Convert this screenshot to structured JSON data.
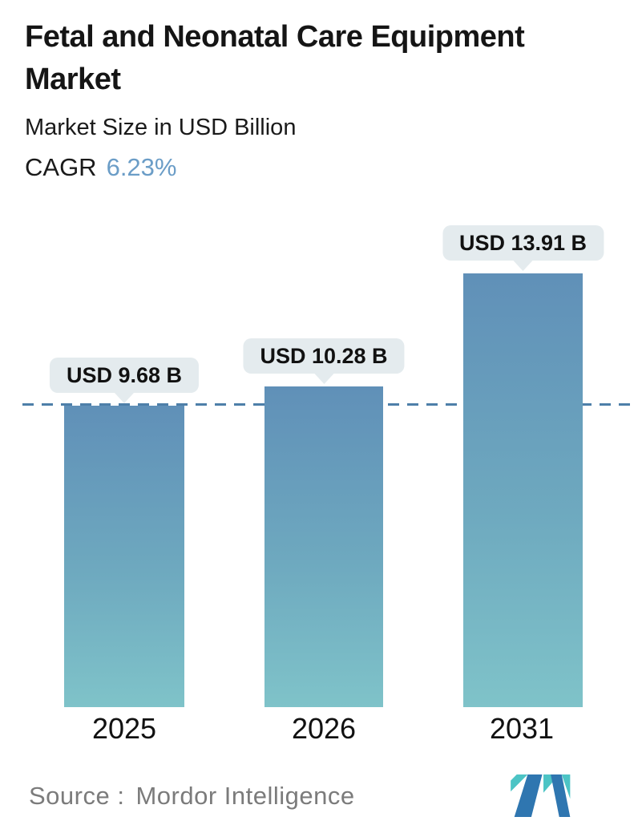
{
  "header": {
    "title": "Fetal and Neonatal Care Equipment Market",
    "subtitle": "Market Size in USD Billion",
    "cagr_label": "CAGR",
    "cagr_value": "6.23%"
  },
  "chart_data": {
    "type": "bar",
    "title": "Fetal and Neonatal Care Equipment Market",
    "subtitle": "Market Size in USD Billion",
    "cagr_pct": 6.23,
    "categories": [
      "2025",
      "2026",
      "2031"
    ],
    "values": [
      9.68,
      10.28,
      13.91
    ],
    "value_labels": [
      "USD 9.68 B",
      "USD 10.28 B",
      "USD 13.91 B"
    ],
    "xlabel": "",
    "ylabel": "Market Size in USD Billion",
    "ylim": [
      0,
      15
    ],
    "grid": false,
    "legend": false,
    "reference_line": {
      "value": 9.68,
      "style": "dashed",
      "color": "#4e7fa9"
    },
    "bar_gradient_top": "#6090b8",
    "bar_gradient_bottom": "#7fc3c9",
    "label_box_color": "#e4ebee"
  },
  "footer": {
    "source_label": "Source :",
    "source_value": "Mordor Intelligence",
    "logo_name": "mordor-intelligence-logo"
  },
  "colors": {
    "title_text": "#151515",
    "cagr_value_blue": "#6b9dc7",
    "source_text": "#7b7b7b",
    "logo_blue": "#2f76b0",
    "logo_teal": "#4cc4c5"
  }
}
